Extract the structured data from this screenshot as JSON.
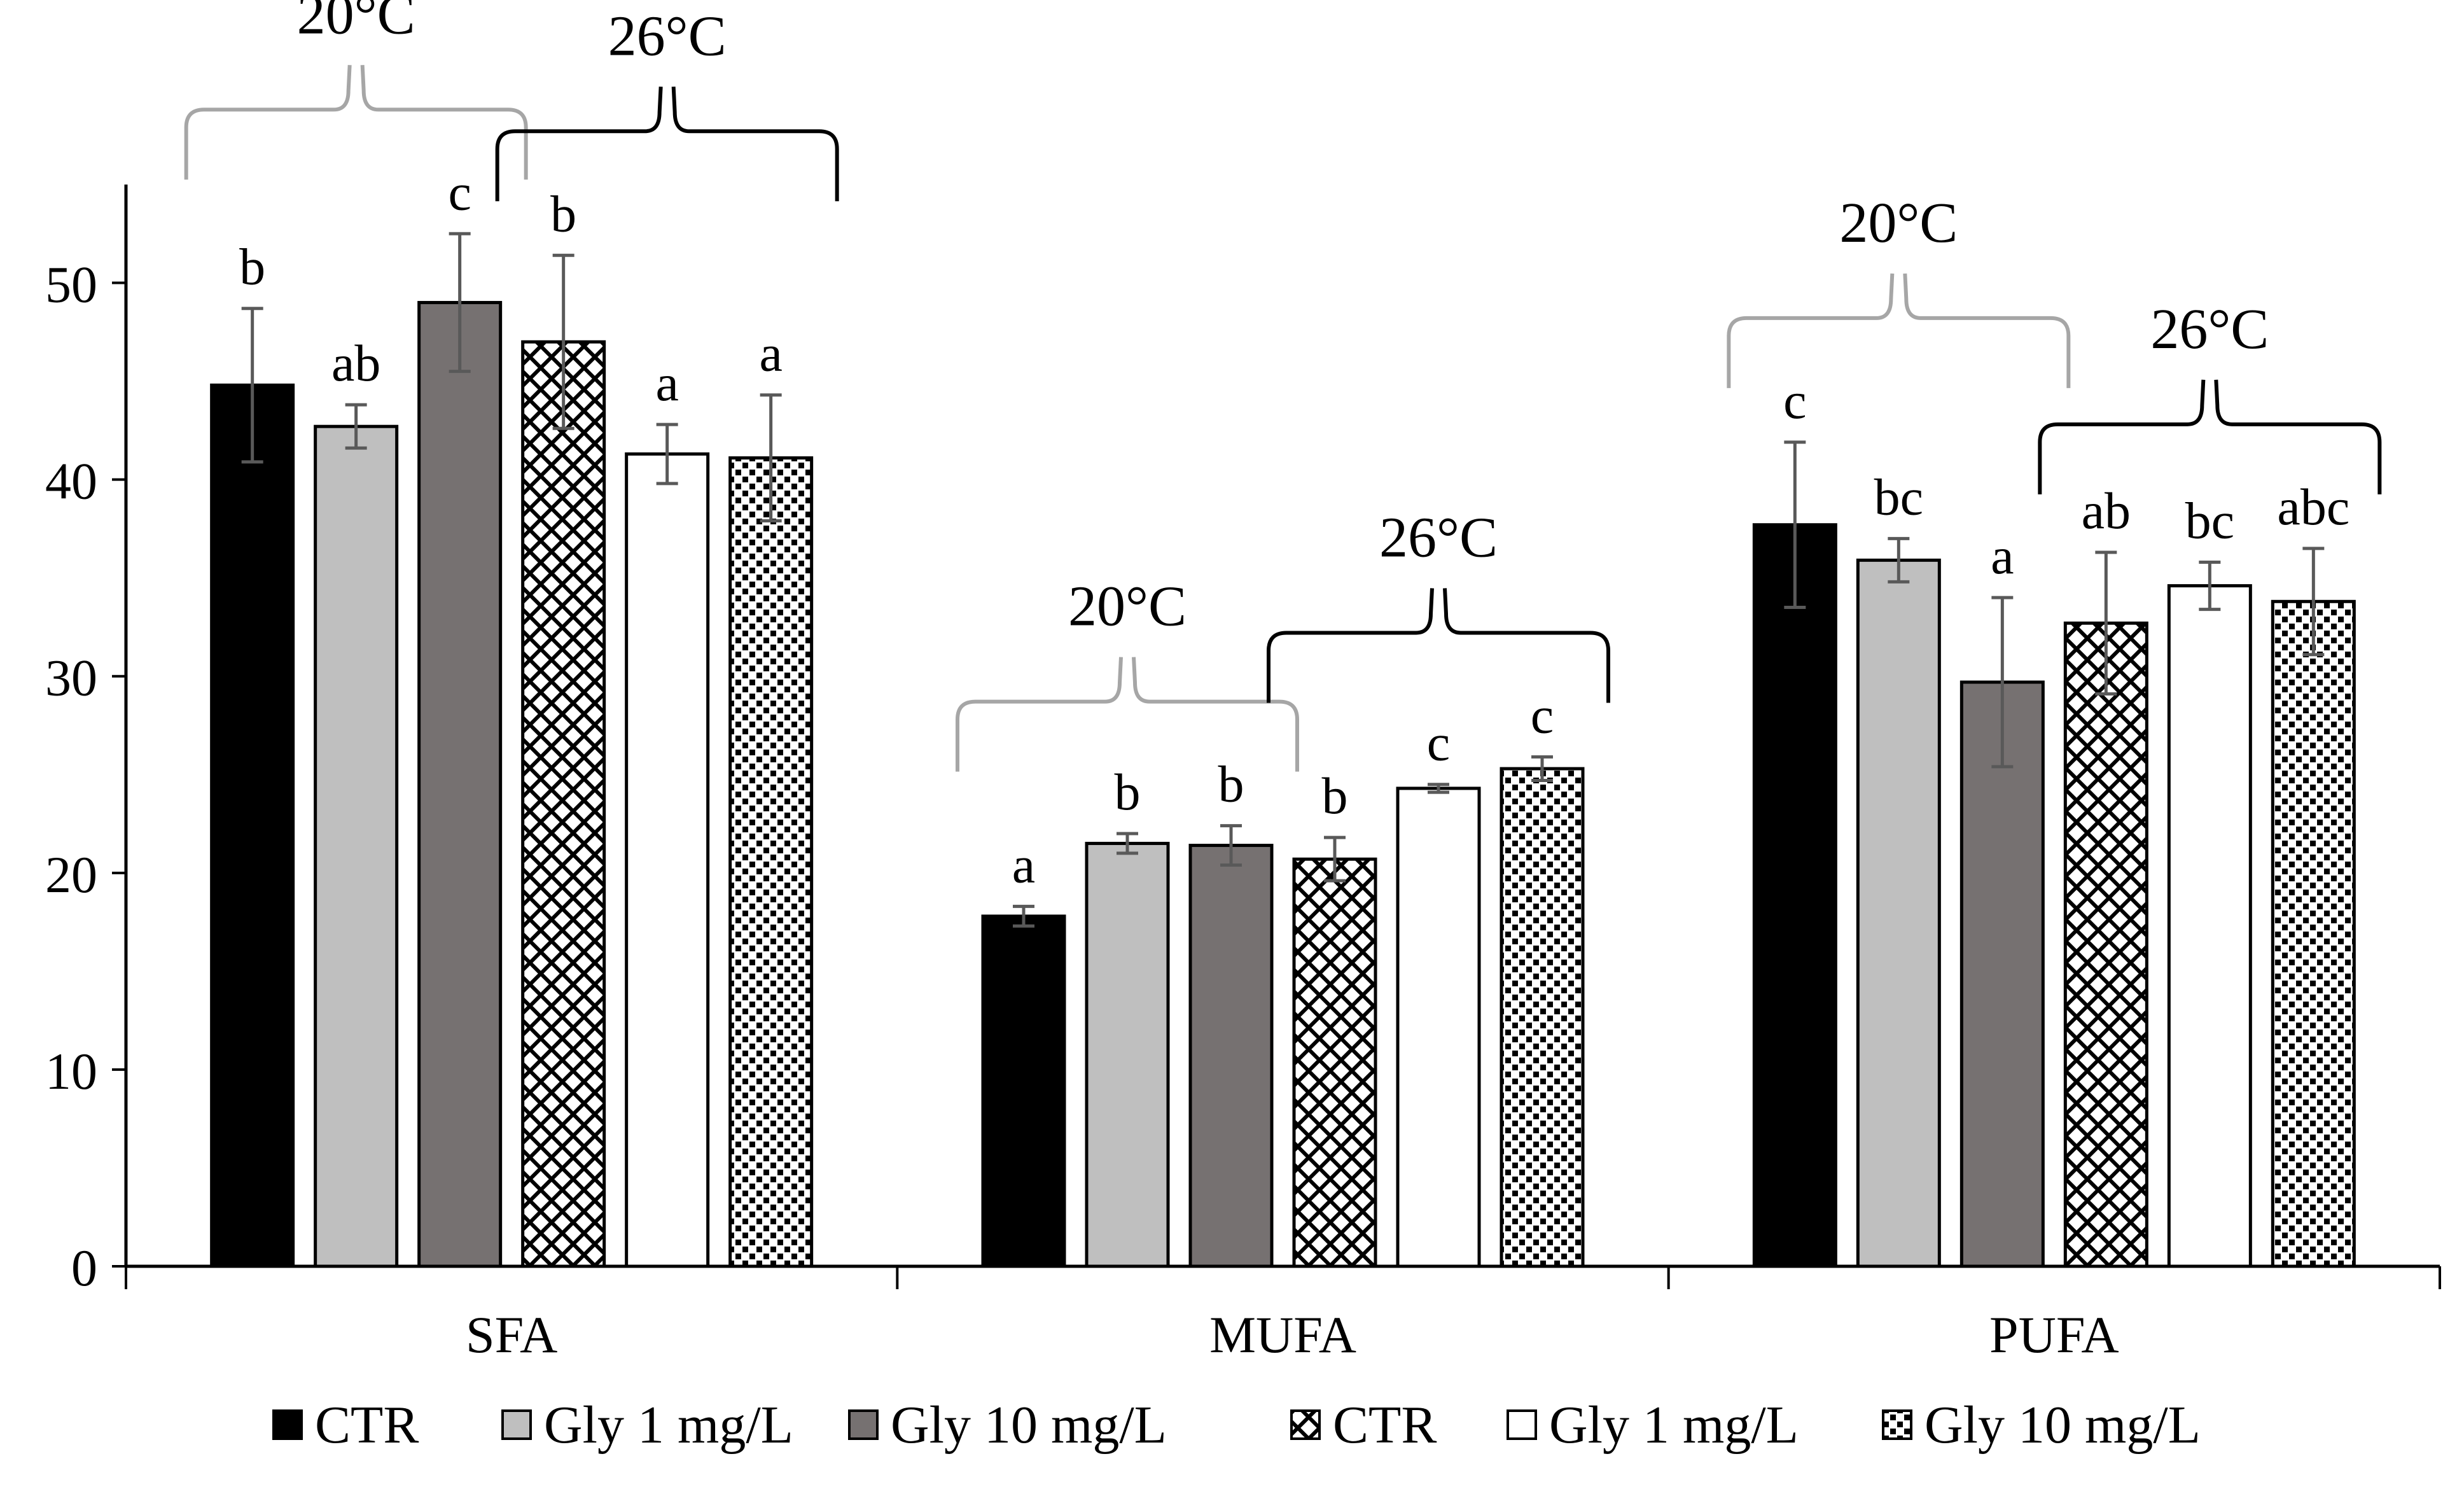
{
  "chart_data": {
    "type": "bar",
    "categories": [
      "SFA",
      "MUFA",
      "PUFA"
    ],
    "ylim": [
      0,
      55
    ],
    "yticks": [
      0,
      10,
      20,
      30,
      40,
      50
    ],
    "series": [
      {
        "name": "CTR",
        "group": "20°C",
        "fill": "solid",
        "color": "#000000",
        "legend": "CTR",
        "values": [
          44.8,
          17.8,
          37.7
        ],
        "errors": [
          3.9,
          0.5,
          4.2
        ],
        "letters": [
          "b",
          "a",
          "c"
        ]
      },
      {
        "name": "Gly 1 mg/L",
        "group": "20°C",
        "fill": "solid",
        "color": "#bfbfbf",
        "legend": "Gly 1  mg/L",
        "values": [
          42.7,
          21.5,
          35.9
        ],
        "errors": [
          1.1,
          0.5,
          1.1
        ],
        "letters": [
          "ab",
          "b",
          "bc"
        ]
      },
      {
        "name": "Gly 10 mg/L",
        "group": "20°C",
        "fill": "solid",
        "color": "#767171",
        "legend": "Gly 10 mg/L",
        "values": [
          49.0,
          21.4,
          29.7
        ],
        "errors": [
          3.5,
          1.0,
          4.3
        ],
        "letters": [
          "c",
          "b",
          "a"
        ]
      },
      {
        "name": "CTR",
        "group": "26°C",
        "fill": "lattice",
        "color": "#000000",
        "legend": "CTR",
        "values": [
          47.0,
          20.7,
          32.7
        ],
        "errors": [
          4.4,
          1.1,
          3.6
        ],
        "letters": [
          "b",
          "b",
          "ab"
        ]
      },
      {
        "name": "Gly 1 mg/L",
        "group": "26°C",
        "fill": "white",
        "color": "#ffffff",
        "legend": "Gly 1  mg/L",
        "values": [
          41.3,
          24.3,
          34.6
        ],
        "errors": [
          1.5,
          0.2,
          1.2
        ],
        "letters": [
          "a",
          "c",
          "bc"
        ]
      },
      {
        "name": "Gly 10 mg/L",
        "group": "26°C",
        "fill": "dots",
        "color": "#000000",
        "legend": "Gly 10 mg/L",
        "values": [
          41.1,
          25.3,
          33.8
        ],
        "errors": [
          3.2,
          0.6,
          2.7
        ],
        "letters": [
          "a",
          "c",
          "abc"
        ]
      }
    ],
    "brackets": [
      {
        "category": "SFA",
        "group": "20°C",
        "label": "20°C",
        "color": "#a6a6a6"
      },
      {
        "category": "SFA",
        "group": "26°C",
        "label": "26°C",
        "color": "#000000"
      },
      {
        "category": "MUFA",
        "group": "20°C",
        "label": "20°C",
        "color": "#a6a6a6"
      },
      {
        "category": "MUFA",
        "group": "26°C",
        "label": "26°C",
        "color": "#000000"
      },
      {
        "category": "PUFA",
        "group": "20°C",
        "label": "20°C",
        "color": "#a6a6a6"
      },
      {
        "category": "PUFA",
        "group": "26°C",
        "label": "26°C",
        "color": "#000000"
      }
    ],
    "legend_position": "bottom",
    "title": "",
    "xlabel": "",
    "ylabel": ""
  }
}
